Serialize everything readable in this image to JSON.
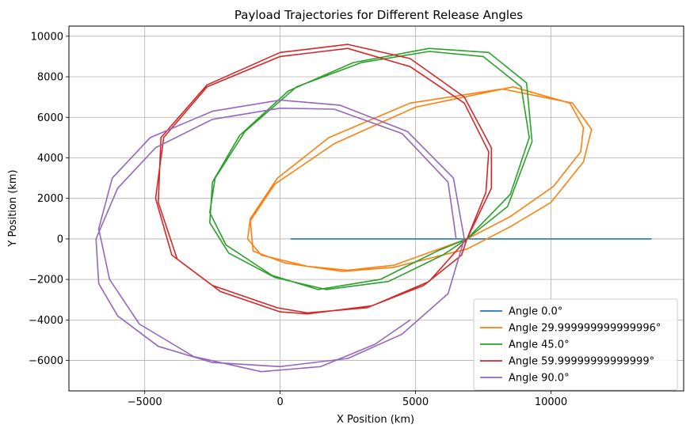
{
  "chart_data": {
    "type": "line",
    "title": "Payload Trajectories for Different Release Angles",
    "xlabel": "X Position (km)",
    "ylabel": "Y Position (km)",
    "xlim": [
      -7800,
      14900
    ],
    "ylim": [
      -7500,
      10500
    ],
    "xticks": [
      -5000,
      0,
      5000,
      10000
    ],
    "xtick_labels": [
      "−5000",
      "0",
      "5000",
      "10000"
    ],
    "yticks": [
      -6000,
      -4000,
      -2000,
      0,
      2000,
      4000,
      6000,
      8000,
      10000
    ],
    "ytick_labels": [
      "−6000",
      "−4000",
      "−2000",
      "0",
      "2000",
      "4000",
      "6000",
      "8000",
      "10000"
    ],
    "grid": true,
    "legend_position": "lower-right",
    "series": [
      {
        "name": "Angle 0.0°",
        "color": "#1f77b4",
        "x": [
          400,
          13700
        ],
        "y": [
          0,
          0
        ]
      },
      {
        "name": "Angle 29.999999999999996°",
        "color": "#ff7f0e",
        "x": [
          6900,
          8500,
          10100,
          11100,
          11200,
          10700,
          8600,
          5000,
          2000,
          -200,
          -1100,
          -1000,
          200,
          2300,
          4200,
          6900,
          8500,
          10000,
          11200,
          11500,
          10800,
          8200,
          4800,
          1800,
          -100,
          -1100,
          -1200,
          -700,
          1000,
          2500,
          4200,
          6900
        ],
        "y": [
          0,
          1100,
          2600,
          4300,
          5500,
          6700,
          7500,
          6500,
          4700,
          2700,
          900,
          -600,
          -1200,
          -1600,
          -1400,
          -500,
          600,
          1800,
          3800,
          5400,
          6700,
          7400,
          6700,
          5000,
          3000,
          1000,
          0,
          -800,
          -1350,
          -1550,
          -1300,
          0
        ]
      },
      {
        "name": "Angle 45.0°",
        "color": "#2ca02c",
        "x": [
          6900,
          8500,
          9200,
          8900,
          7500,
          5500,
          3000,
          600,
          -1300,
          -2400,
          -2600,
          -2000,
          -300,
          1400,
          3700,
          5800,
          6900,
          8400,
          9300,
          9100,
          7700,
          5500,
          2700,
          300,
          -1500,
          -2500,
          -2600,
          -1900,
          -200,
          1700,
          4000,
          6000,
          6900
        ],
        "y": [
          0,
          2200,
          5000,
          7500,
          9000,
          9250,
          8700,
          7500,
          5300,
          3000,
          1300,
          -300,
          -1800,
          -2500,
          -2000,
          -600,
          0,
          1600,
          4800,
          7700,
          9200,
          9400,
          8700,
          7300,
          5100,
          2800,
          800,
          -700,
          -1900,
          -2500,
          -2100,
          -800,
          0
        ]
      },
      {
        "name": "Angle 59.99999999999999°",
        "color": "#d62728",
        "x": [
          6900,
          7600,
          7700,
          6800,
          4800,
          2500,
          0,
          -2700,
          -4300,
          -4600,
          -4000,
          -2500,
          -100,
          1000,
          3200,
          5300,
          6700,
          6900,
          7800,
          7800,
          6800,
          4800,
          2500,
          0,
          -2700,
          -4400,
          -4500,
          -3800,
          -2200,
          0,
          1000,
          3400,
          5500,
          6900
        ],
        "y": [
          0,
          2300,
          4300,
          6700,
          8500,
          9400,
          9000,
          7500,
          5000,
          2000,
          -800,
          -2300,
          -3400,
          -3650,
          -3400,
          -2300,
          -800,
          0,
          2500,
          4500,
          7000,
          8900,
          9600,
          9200,
          7600,
          5000,
          1800,
          -1000,
          -2600,
          -3600,
          -3700,
          -3300,
          -2100,
          0
        ]
      },
      {
        "name": "Angle 90.0°",
        "color": "#9467bd",
        "x": [
          6500,
          6200,
          4500,
          2000,
          0,
          -2500,
          -4600,
          -6000,
          -6800,
          -6700,
          -6000,
          -4500,
          -2500,
          0,
          2500,
          4500,
          6200,
          6800,
          6400,
          4700,
          2200,
          0,
          -2500,
          -4800,
          -6200,
          -6700,
          -6300,
          -5200,
          -3200,
          -700,
          1500,
          3500,
          4800
        ],
        "y": [
          0,
          2800,
          5200,
          6400,
          6450,
          5900,
          4500,
          2500,
          0,
          -2200,
          -3800,
          -5300,
          -6100,
          -6300,
          -5900,
          -4700,
          -2700,
          0,
          3000,
          5300,
          6600,
          6850,
          6300,
          5000,
          3000,
          500,
          -2000,
          -4200,
          -5800,
          -6550,
          -6300,
          -5200,
          -4000
        ]
      }
    ]
  }
}
